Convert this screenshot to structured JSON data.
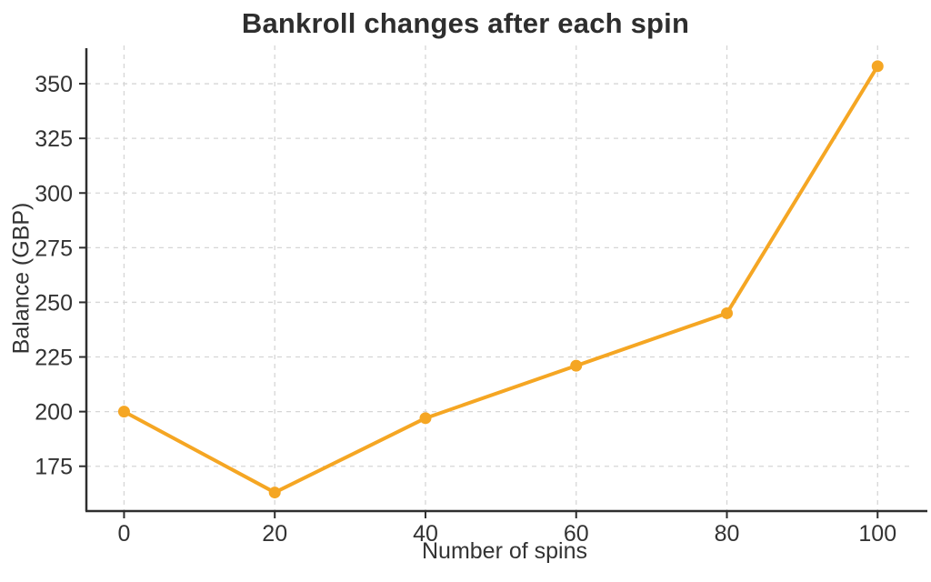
{
  "chart_data": {
    "type": "line",
    "title": "Bankroll changes after each spin",
    "xlabel": "Number of spins",
    "ylabel": "Balance (GBP)",
    "x": [
      0,
      20,
      40,
      60,
      80,
      100
    ],
    "series": [
      {
        "name": "Balance",
        "values": [
          200,
          163,
          197,
          221,
          245,
          358
        ]
      }
    ],
    "xticks": [
      0,
      20,
      40,
      60,
      80,
      100
    ],
    "yticks": [
      175,
      200,
      225,
      250,
      275,
      300,
      325,
      350
    ],
    "xlim": [
      -5,
      106
    ],
    "ylim": [
      154.5,
      367.5
    ],
    "grid": true,
    "legend": "none",
    "style": {
      "line_color": "#F5A623",
      "marker": "circle",
      "grid_color": "#d6d6d6",
      "spine_color": "#2e2e2e",
      "text_color": "#333333"
    }
  }
}
